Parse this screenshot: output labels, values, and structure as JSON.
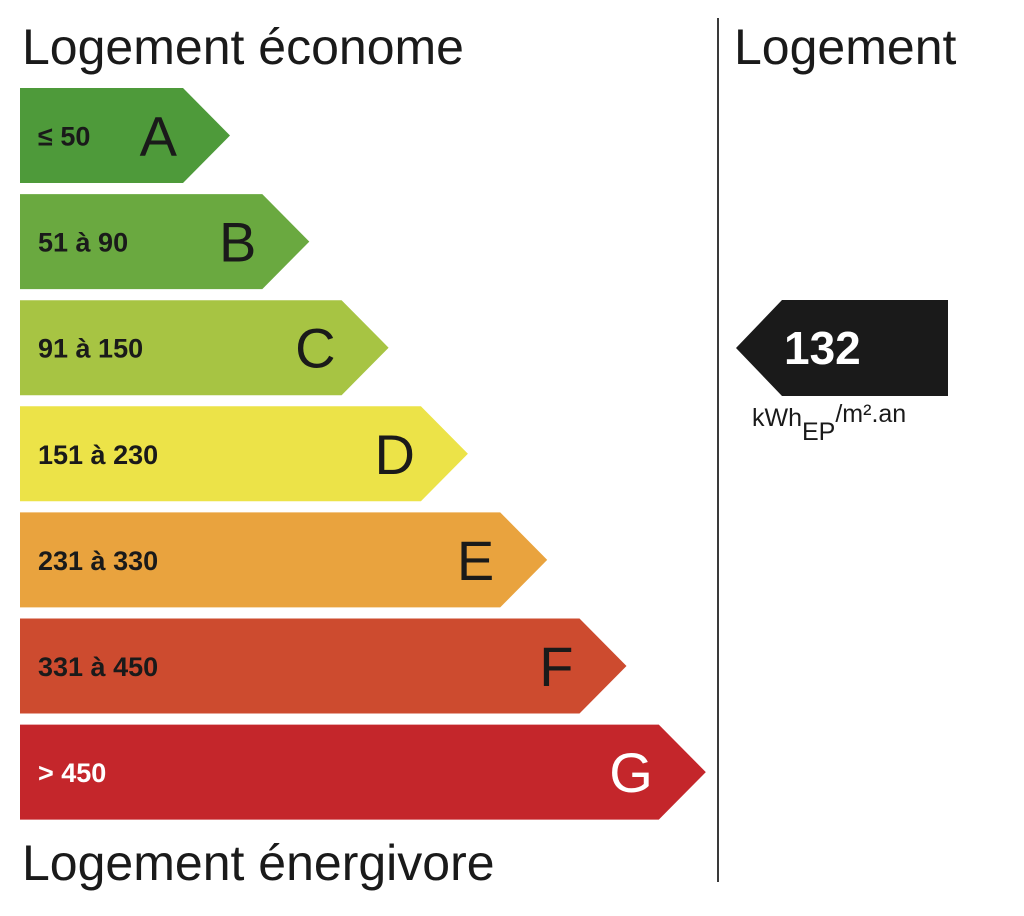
{
  "header": {
    "top_label": "Logement économe",
    "bottom_label": "Logement énergivore",
    "right_label": "Logement"
  },
  "chart_data": {
    "type": "bar",
    "title": "",
    "categories": [
      "A",
      "B",
      "C",
      "D",
      "E",
      "F",
      "G"
    ],
    "ranges": [
      "≤ 50",
      "51 à 90",
      "91 à 150",
      "151 à 230",
      "231 à 330",
      "331 à 450",
      "> 450"
    ],
    "colors": [
      "#4e9a3a",
      "#6aa940",
      "#a7c443",
      "#ece348",
      "#e9a33e",
      "#cd4b2f",
      "#c4262b"
    ],
    "letter_colors": [
      "#1a1a1a",
      "#1a1a1a",
      "#1a1a1a",
      "#1a1a1a",
      "#1a1a1a",
      "#1a1a1a",
      "#ffffff"
    ],
    "range_colors": [
      "#1a1a1a",
      "#1a1a1a",
      "#1a1a1a",
      "#1a1a1a",
      "#1a1a1a",
      "#1a1a1a",
      "#ffffff"
    ],
    "current_value": 132,
    "current_class": "C"
  },
  "indicator": {
    "value": "132",
    "unit_main": "kWh",
    "unit_sub": "EP",
    "unit_rest": "/m².an",
    "color": "#1a1a1a"
  }
}
